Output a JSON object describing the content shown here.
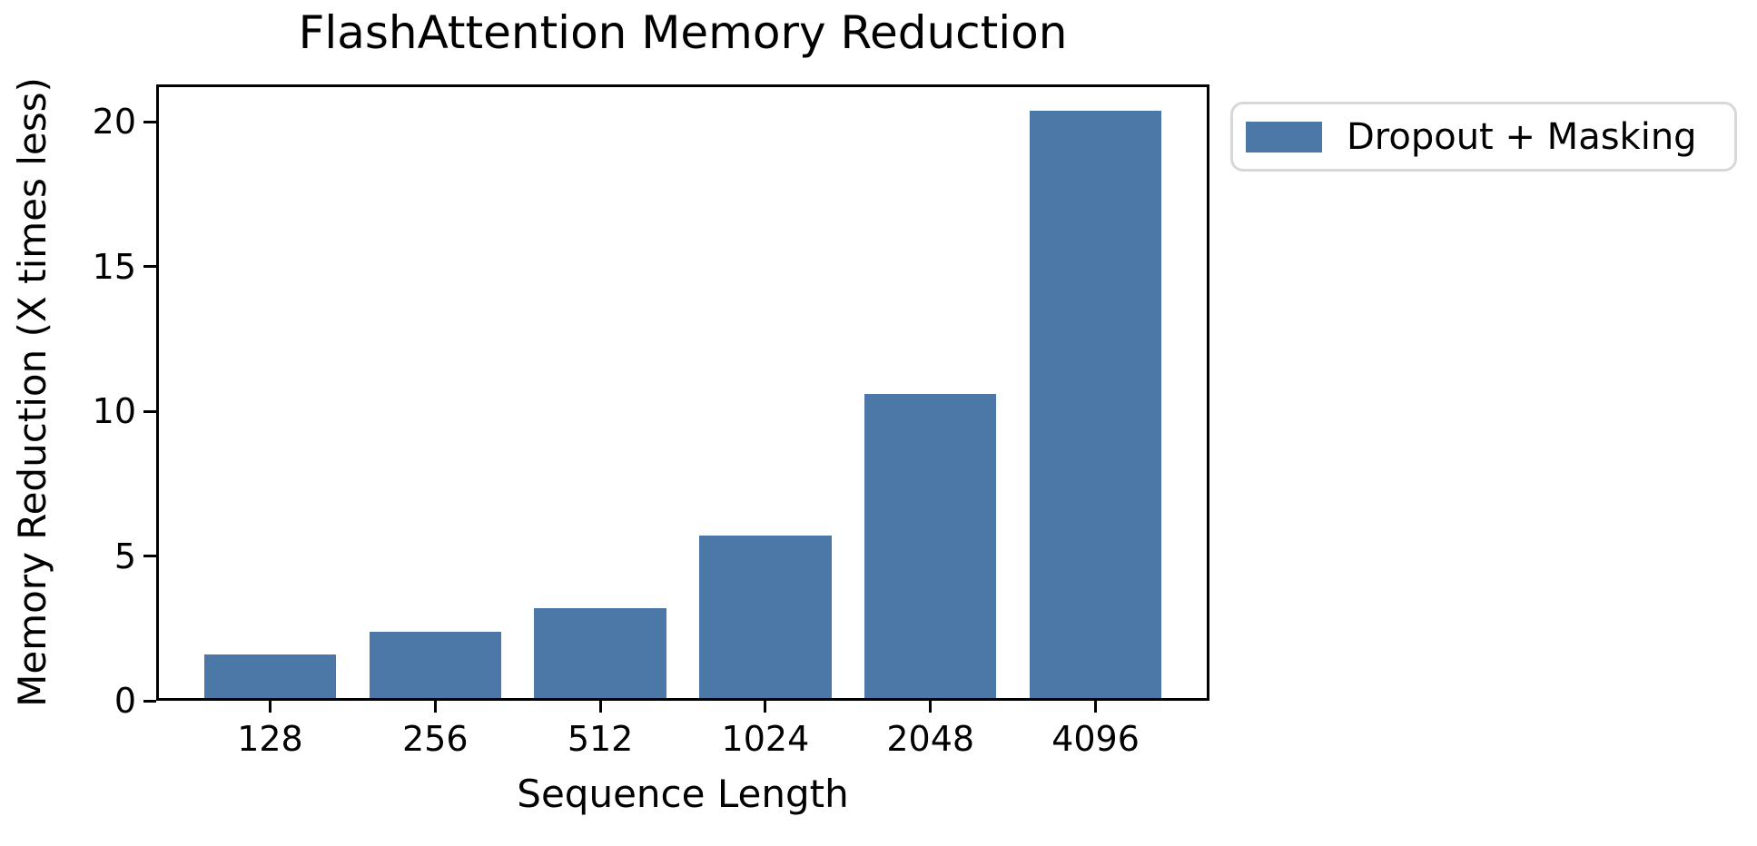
{
  "chart_data": {
    "type": "bar",
    "title": "FlashAttention Memory Reduction",
    "xlabel": "Sequence Length",
    "ylabel": "Memory Reduction (X times less)",
    "categories": [
      "128",
      "256",
      "512",
      "1024",
      "2048",
      "4096"
    ],
    "values": [
      1.5,
      2.3,
      3.1,
      5.6,
      10.5,
      20.3
    ],
    "yticks": [
      0,
      5,
      10,
      15,
      20
    ],
    "ylim": [
      0,
      21.3
    ],
    "grid": false,
    "bar_color": "#4C78A8",
    "axis_color": "#000000",
    "legend": {
      "label": "Dropout + Masking",
      "position": "outside upper right",
      "border_color": "#d8d8d8"
    }
  }
}
